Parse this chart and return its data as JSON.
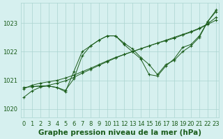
{
  "bg_color": "#d6f0ef",
  "grid_color": "#aad4d0",
  "line_color": "#1a5c1a",
  "marker_color": "#1a5c1a",
  "xlabel": "Graphe pression niveau de la mer (hPa)",
  "xlabel_fontsize": 7.5,
  "xlabel_color": "#1a5c1a",
  "tick_color": "#1a5c1a",
  "tick_fontsize": 6,
  "ylim": [
    1019.7,
    1023.7
  ],
  "xlim": [
    -0.3,
    23.3
  ],
  "yticks": [
    1020,
    1021,
    1022,
    1023
  ],
  "xticks": [
    0,
    1,
    2,
    3,
    4,
    5,
    6,
    7,
    8,
    9,
    10,
    11,
    12,
    13,
    14,
    15,
    16,
    17,
    18,
    19,
    20,
    21,
    22,
    23
  ],
  "series": [
    {
      "x": [
        0,
        1,
        2,
        3,
        4,
        5,
        6,
        7,
        8,
        9,
        10,
        11,
        12,
        13,
        14,
        15,
        16,
        17,
        18,
        19,
        20,
        21,
        22,
        23
      ],
      "y": [
        1020.4,
        1020.63,
        1020.76,
        1020.83,
        1020.9,
        1020.98,
        1021.1,
        1021.25,
        1021.38,
        1021.52,
        1021.65,
        1021.78,
        1021.9,
        1022.0,
        1022.1,
        1022.2,
        1022.3,
        1022.38,
        1022.47,
        1022.58,
        1022.68,
        1022.8,
        1022.95,
        1023.1
      ]
    },
    {
      "x": [
        0,
        1,
        2,
        3,
        4,
        5,
        6,
        7,
        8,
        9,
        10,
        11,
        12,
        13,
        14,
        15,
        16,
        17,
        18,
        19,
        20,
        21,
        22,
        23
      ],
      "y": [
        1020.7,
        1020.83,
        1020.9,
        1020.95,
        1021.0,
        1021.08,
        1021.18,
        1021.3,
        1021.42,
        1021.55,
        1021.68,
        1021.8,
        1021.9,
        1022.0,
        1022.1,
        1022.2,
        1022.3,
        1022.4,
        1022.5,
        1022.6,
        1022.7,
        1022.82,
        1022.97,
        1023.2
      ]
    },
    {
      "x": [
        0,
        1,
        2,
        3,
        4,
        5,
        6,
        7,
        8,
        9,
        10,
        11,
        12,
        13,
        14,
        15,
        16,
        17,
        18,
        19,
        20,
        21,
        22,
        23
      ],
      "y": [
        1020.75,
        1020.78,
        1020.8,
        1020.8,
        1020.75,
        1020.65,
        1021.05,
        1021.85,
        1022.2,
        1022.4,
        1022.55,
        1022.55,
        1022.3,
        1022.1,
        1021.8,
        1021.55,
        1021.2,
        1021.55,
        1021.7,
        1022.0,
        1022.2,
        1022.5,
        1023.05,
        1023.45
      ]
    },
    {
      "x": [
        1,
        2,
        3,
        4,
        5,
        6,
        7,
        8,
        9,
        10,
        11,
        12,
        13,
        14,
        15,
        16,
        17,
        18,
        19,
        20,
        21,
        22,
        23
      ],
      "y": [
        1020.78,
        1020.8,
        1020.8,
        1020.75,
        1020.6,
        1021.3,
        1022.0,
        1022.2,
        1022.4,
        1022.55,
        1022.55,
        1022.25,
        1022.0,
        1021.75,
        1021.2,
        1021.15,
        1021.5,
        1021.75,
        1022.15,
        1022.25,
        1022.55,
        1023.05,
        1023.4
      ]
    }
  ]
}
